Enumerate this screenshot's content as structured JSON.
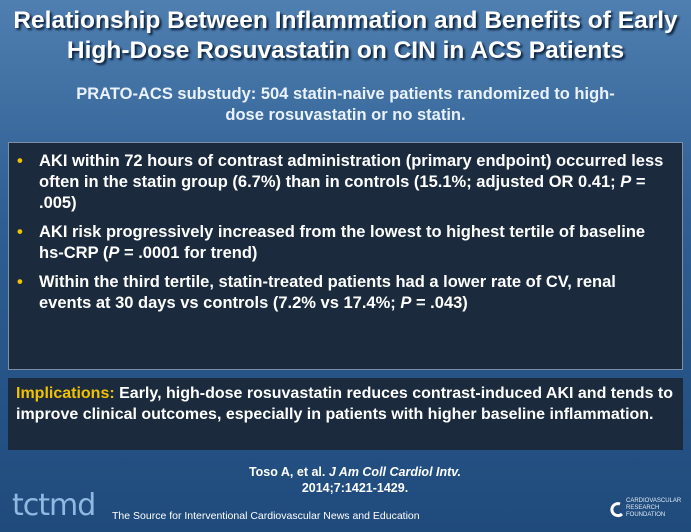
{
  "title": "Relationship Between Inflammation and Benefits of Early High-Dose Rosuvastatin on CIN in ACS Patients",
  "subtitle": "PRATO-ACS substudy: 504 statin-naive patients randomized to high-dose rosuvastatin or no statin.",
  "bullets": [
    [
      "AKI within 72 hours of contrast administration (primary endpoint) occurred less often in the statin group (6.7%) than in controls (15.1%; adjusted OR 0.41; ",
      "P",
      " = .005)"
    ],
    [
      "AKI risk progressively increased from the lowest to highest tertile of baseline hs-CRP (",
      "P",
      " = .0001 for trend)"
    ],
    [
      "Within the third tertile, statin-treated patients had a lower rate of CV, renal events at 30 days vs controls (7.2% vs 17.4%; ",
      "P",
      " = .043)"
    ]
  ],
  "implications": {
    "label": "Implications:",
    "text": " Early, high-dose rosuvastatin reduces contrast-induced AKI and tends to improve clinical outcomes, especially in patients with higher baseline inflammation."
  },
  "citation": [
    "Toso A, et al. ",
    "J Am Coll Cardiol Intv.",
    " 2014;7:1421-1429."
  ],
  "footer": {
    "logo": "tctmd",
    "tagline": "The Source for Interventional Cardiovascular News and Education",
    "foundation": "CARDIOVASCULAR RESEARCH FOUNDATION"
  }
}
